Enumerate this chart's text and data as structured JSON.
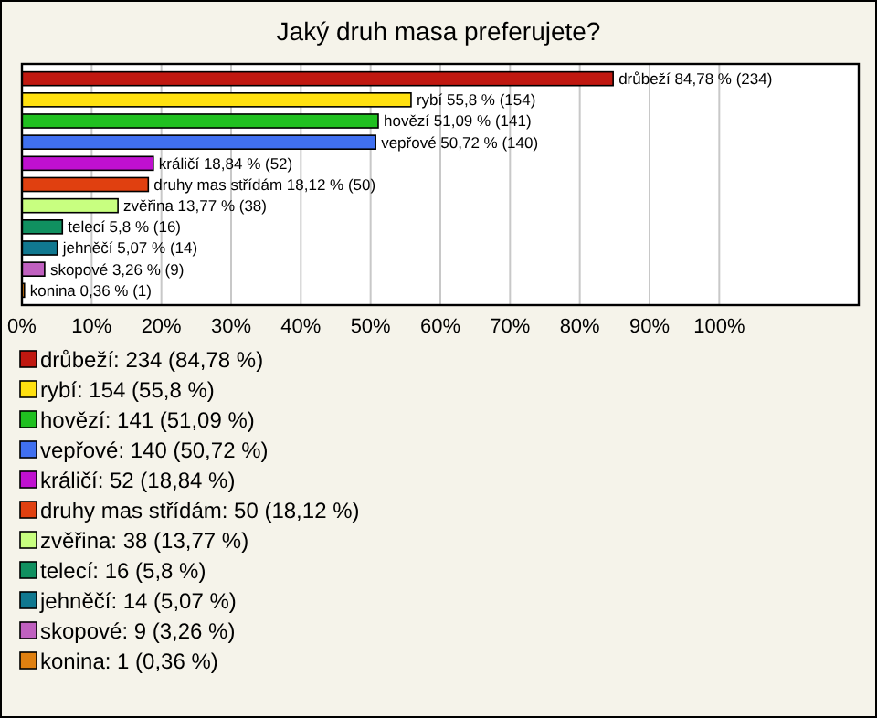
{
  "chart_data": {
    "type": "bar",
    "orientation": "horizontal",
    "title": "Jaký druh masa preferujete?",
    "categories": [
      "drůbeží",
      "rybí",
      "hovězí",
      "vepřové",
      "králičí",
      "druhy mas střídám",
      "zvěřina",
      "telecí",
      "jehněčí",
      "skopové",
      "konina"
    ],
    "values": [
      84.78,
      55.8,
      51.09,
      50.72,
      18.84,
      18.12,
      13.77,
      5.8,
      5.07,
      3.26,
      0.36
    ],
    "value_labels": [
      "84,78 % (234)",
      "55,8 % (154)",
      "51,09 % (141)",
      "50,72 % (140)",
      "18,84 % (52)",
      "18,12 % (50)",
      "13,77 % (38)",
      "5,8 % (16)",
      "5,07 % (14)",
      "3,26 % (9)",
      "0,36 % (1)"
    ],
    "colors": [
      "#c01810",
      "#ffe010",
      "#20c020",
      "#4070f0",
      "#c010d0",
      "#e04010",
      "#c8ff80",
      "#109060",
      "#107890",
      "#c060c0",
      "#e08010"
    ],
    "xlim": [
      0,
      120
    ],
    "xticks": [
      {
        "value": 0,
        "label": "0%"
      },
      {
        "value": 10,
        "label": "10%"
      },
      {
        "value": 20,
        "label": "20%"
      },
      {
        "value": 30,
        "label": "30%"
      },
      {
        "value": 40,
        "label": "40%"
      },
      {
        "value": 50,
        "label": "50%"
      },
      {
        "value": 60,
        "label": "60%"
      },
      {
        "value": 70,
        "label": "70%"
      },
      {
        "value": 80,
        "label": "80%"
      },
      {
        "value": 90,
        "label": "90%"
      },
      {
        "value": 100,
        "label": "100%"
      }
    ],
    "grid": "x",
    "tick_labels": "x",
    "annotations": [
      "drůbeží: 234 (84,78 %)",
      "rybí: 154 (55,8 %)",
      "hovězí: 141 (51,09 %)",
      "vepřové: 140 (50,72 %)",
      "králičí: 52 (18,84 %)",
      "druhy mas střídám: 50 (18,12 %)",
      "zvěřina: 38 (13,77 %)",
      "telecí: 16 (5,8 %)",
      "jehněčí: 14 (5,07 %)",
      "skopové: 9 (3,26 %)",
      "konina: 1 (0,36 %)"
    ]
  }
}
